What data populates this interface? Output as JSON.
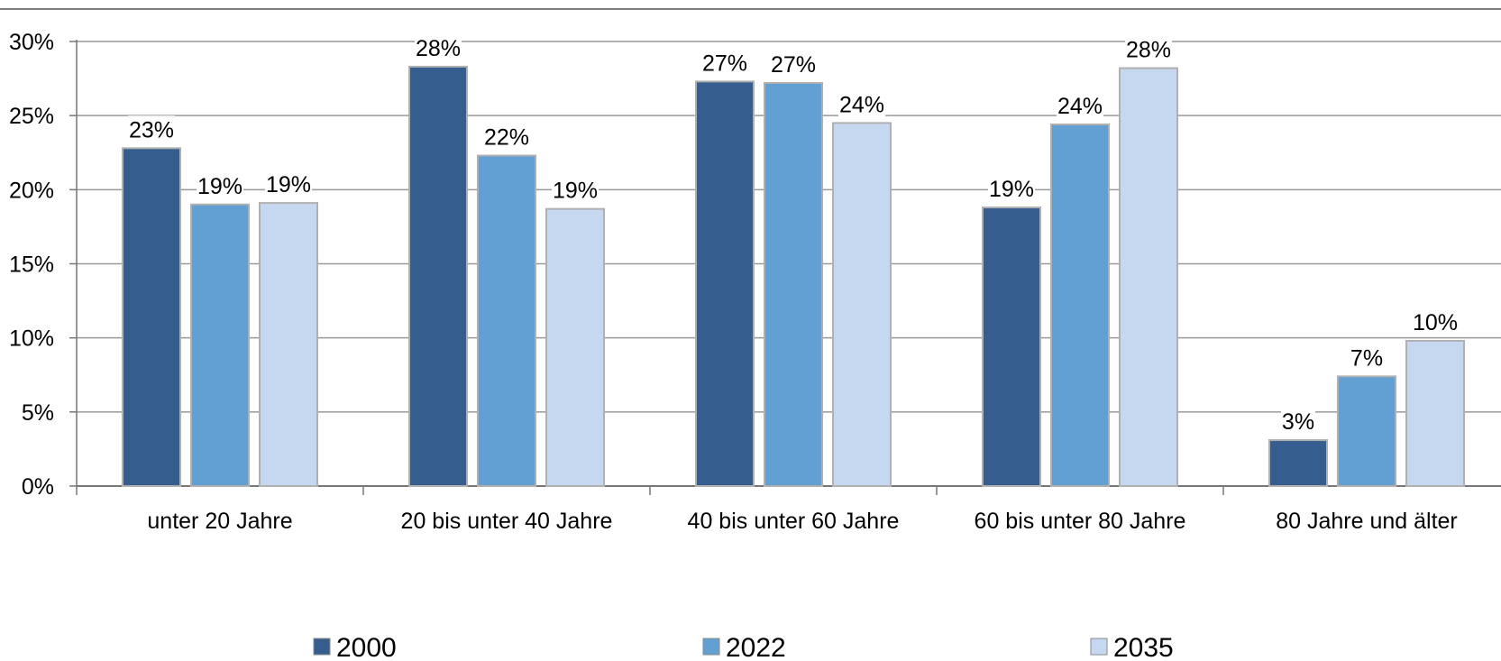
{
  "chart_data": {
    "type": "bar",
    "title": "",
    "xlabel": "",
    "ylabel": "",
    "categories": [
      "unter 20 Jahre",
      "20 bis unter 40 Jahre",
      "40 bis unter 60 Jahre",
      "60 bis unter 80 Jahre",
      "80 Jahre und älter"
    ],
    "series": [
      {
        "name": "2000",
        "color": "#355e8f",
        "values": [
          22.8,
          28.3,
          27.3,
          18.8,
          3.1
        ],
        "labels": [
          "23%",
          "28%",
          "27%",
          "19%",
          "3%"
        ]
      },
      {
        "name": "2022",
        "color": "#62a0d3",
        "values": [
          19.0,
          22.3,
          27.2,
          24.4,
          7.4
        ],
        "labels": [
          "19%",
          "22%",
          "27%",
          "24%",
          "7%"
        ]
      },
      {
        "name": "2035",
        "color": "#c6d8f0",
        "values": [
          19.1,
          18.7,
          24.5,
          28.2,
          9.8
        ],
        "labels": [
          "19%",
          "19%",
          "24%",
          "28%",
          "10%"
        ]
      }
    ],
    "ylim": [
      0,
      30
    ],
    "yticks": [
      0,
      5,
      10,
      15,
      20,
      25,
      30
    ],
    "ytick_labels": [
      "0%",
      "5%",
      "10%",
      "15%",
      "20%",
      "25%",
      "30%"
    ],
    "grid": true,
    "legend_position": "bottom"
  }
}
